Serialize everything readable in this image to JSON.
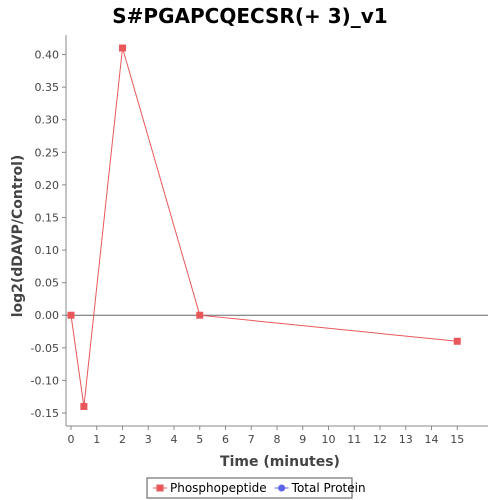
{
  "chart_data": {
    "type": "line",
    "title": "S#PGAPCQECSR(+ 3)_v1",
    "xlabel": "Time (minutes)",
    "ylabel": "log2(dDAVP/Control)",
    "xlim": [
      0,
      16
    ],
    "ylim": [
      -0.17,
      0.43
    ],
    "xticks": [
      0,
      1,
      2,
      3,
      4,
      5,
      6,
      7,
      8,
      9,
      10,
      11,
      12,
      13,
      14,
      15
    ],
    "xtick_labels": [
      "0",
      "1",
      "2",
      "3",
      "4",
      "5",
      "6",
      "7",
      "8",
      "9",
      "10",
      "11",
      "12",
      "13",
      "14",
      "15"
    ],
    "yticks": [
      -0.15,
      -0.1,
      -0.05,
      0.0,
      0.05,
      0.1,
      0.15,
      0.2,
      0.25,
      0.3,
      0.35,
      0.4
    ],
    "ytick_labels": [
      "-0.15",
      "-0.10",
      "-0.05",
      "0.00",
      "0.05",
      "0.10",
      "0.15",
      "0.20",
      "0.25",
      "0.30",
      "0.35",
      "0.40"
    ],
    "zero_line": true,
    "grid": false,
    "legend_position": "bottom-center",
    "series": [
      {
        "name": "Phosphopeptide",
        "color": "#e8585a",
        "marker": "square",
        "x": [
          0,
          0.5,
          2,
          5,
          15
        ],
        "y": [
          0.0,
          -0.14,
          0.41,
          0.0,
          -0.04
        ]
      },
      {
        "name": "Total Protein",
        "color": "#5b63e8",
        "marker": "circle",
        "x": [],
        "y": []
      }
    ]
  }
}
